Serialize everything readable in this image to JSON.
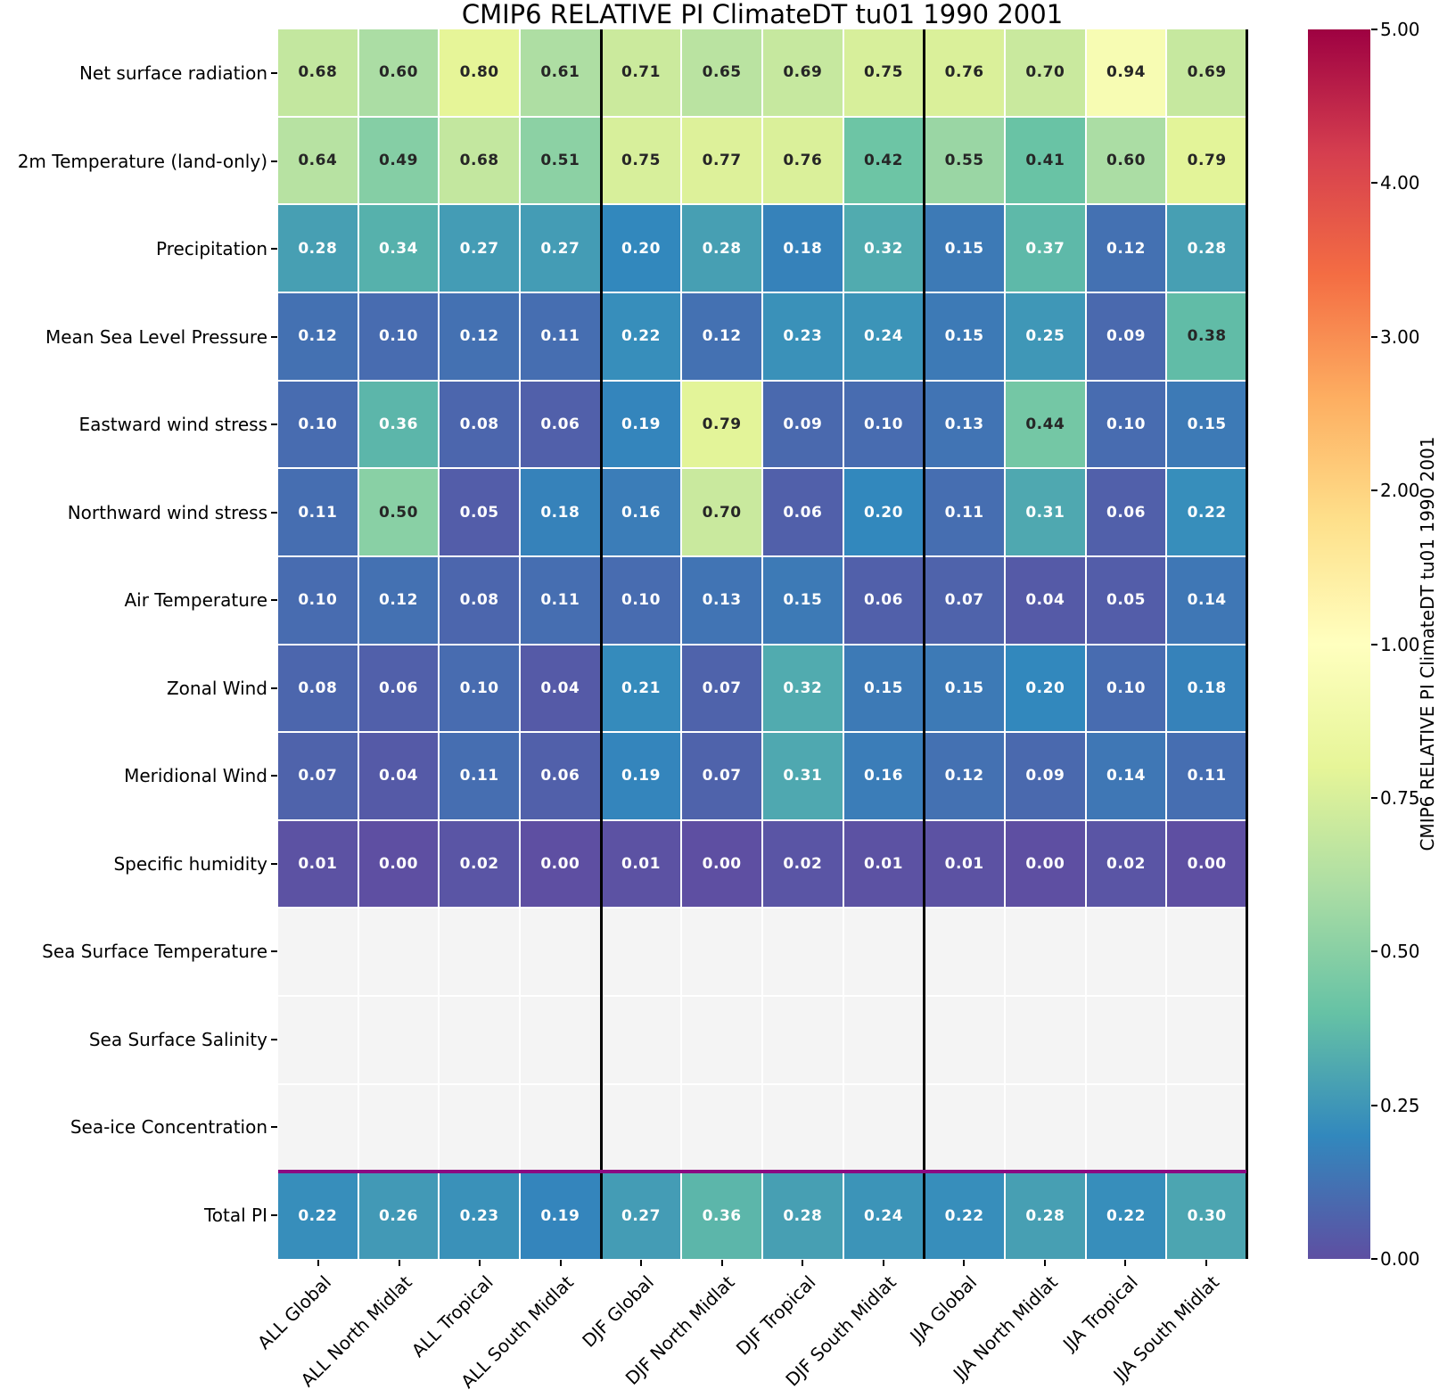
{
  "title": "CMIP6 RELATIVE PI ClimateDT tu01 1990 2001",
  "chart_data": {
    "type": "heatmap",
    "title": "CMIP6 RELATIVE PI ClimateDT tu01 1990 2001",
    "columns": [
      "ALL Global",
      "ALL North Midlat",
      "ALL Tropical",
      "ALL South Midlat",
      "DJF Global",
      "DJF North Midlat",
      "DJF Tropical",
      "DJF South Midlat",
      "JJA Global",
      "JJA North Midlat",
      "JJA Tropical",
      "JJA South Midlat"
    ],
    "rows": [
      "Net surface radiation",
      "2m Temperature (land-only)",
      "Precipitation",
      "Mean Sea Level Pressure",
      "Eastward wind stress",
      "Northward wind stress",
      "Air Temperature",
      "Zonal Wind",
      "Meridional Wind",
      "Specific humidity",
      "Sea Surface Temperature",
      "Sea Surface Salinity",
      "Sea-ice Concentration",
      "Total PI"
    ],
    "values": [
      [
        0.68,
        0.6,
        0.8,
        0.61,
        0.71,
        0.65,
        0.69,
        0.75,
        0.76,
        0.7,
        0.94,
        0.69
      ],
      [
        0.64,
        0.49,
        0.68,
        0.51,
        0.75,
        0.77,
        0.76,
        0.42,
        0.55,
        0.41,
        0.6,
        0.79
      ],
      [
        0.28,
        0.34,
        0.27,
        0.27,
        0.2,
        0.28,
        0.18,
        0.32,
        0.15,
        0.37,
        0.12,
        0.28
      ],
      [
        0.12,
        0.1,
        0.12,
        0.11,
        0.22,
        0.12,
        0.23,
        0.24,
        0.15,
        0.25,
        0.09,
        0.38
      ],
      [
        0.1,
        0.36,
        0.08,
        0.06,
        0.19,
        0.79,
        0.09,
        0.1,
        0.13,
        0.44,
        0.1,
        0.15
      ],
      [
        0.11,
        0.5,
        0.05,
        0.18,
        0.16,
        0.7,
        0.06,
        0.2,
        0.11,
        0.31,
        0.06,
        0.22
      ],
      [
        0.1,
        0.12,
        0.08,
        0.11,
        0.1,
        0.13,
        0.15,
        0.06,
        0.07,
        0.04,
        0.05,
        0.14
      ],
      [
        0.08,
        0.06,
        0.1,
        0.04,
        0.21,
        0.07,
        0.32,
        0.15,
        0.15,
        0.2,
        0.1,
        0.18
      ],
      [
        0.07,
        0.04,
        0.11,
        0.06,
        0.19,
        0.07,
        0.31,
        0.16,
        0.12,
        0.09,
        0.14,
        0.11
      ],
      [
        0.01,
        0.0,
        0.02,
        0.0,
        0.01,
        0.0,
        0.02,
        0.01,
        0.01,
        0.0,
        0.02,
        0.0
      ],
      null,
      null,
      null,
      [
        0.22,
        0.26,
        0.23,
        0.19,
        0.27,
        0.36,
        0.28,
        0.24,
        0.22,
        0.28,
        0.22,
        0.3
      ]
    ],
    "empty_cell_color": "#f4f4f4",
    "cell_text_dark": "#262626",
    "cell_text_light": "#ffffff",
    "group_separators_after_columns": [
      4,
      8,
      12
    ],
    "group_separator_color": "#000000",
    "total_pi_separator_above_row": 13,
    "total_pi_separator_color": "#8b0a82",
    "colorbar": {
      "label": "CMIP6 RELATIVE PI ClimateDT tu01 1990 2001",
      "colormap": "Spectral_r",
      "colors": [
        "#5e4fa2",
        "#3288bd",
        "#66c2a5",
        "#abdda4",
        "#e6f598",
        "#ffffbf",
        "#fee08b",
        "#fdae61",
        "#f46d43",
        "#d53e4f",
        "#9e0142"
      ],
      "vmin": 0.0,
      "vmax": 5.0,
      "tick_values": [
        0.0,
        0.25,
        0.5,
        0.75,
        1.0,
        2.0,
        3.0,
        4.0,
        5.0
      ],
      "tick_labels": [
        "0.00",
        "0.25",
        "0.50",
        "0.75",
        "1.00",
        "2.00",
        "3.00",
        "4.00",
        "5.00"
      ],
      "scale": {
        "value_stops": [
          0.0,
          1.0,
          5.0
        ],
        "fraction_stops": [
          0.0,
          0.5,
          1.0
        ]
      }
    }
  }
}
